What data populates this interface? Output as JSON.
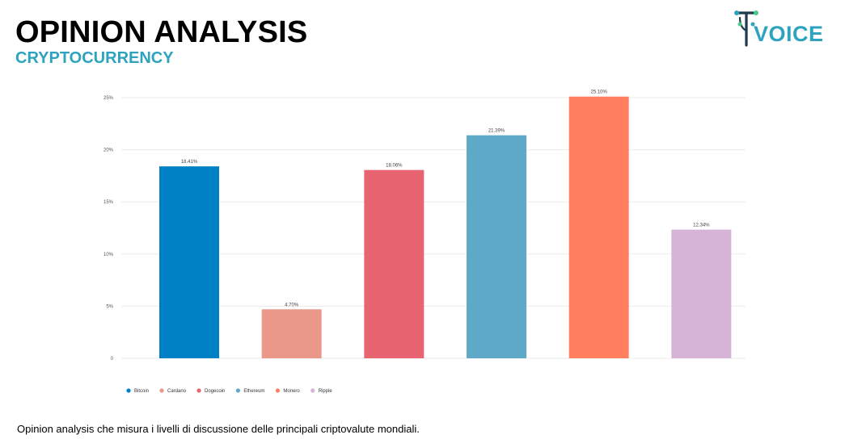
{
  "header": {
    "title": "OPINION ANALYSIS",
    "subtitle": "CRYPTOCURRENCY"
  },
  "logo": {
    "text": "VOICE",
    "icon": "t-voice-logo-icon"
  },
  "colors": {
    "accent": "#2ea3bf",
    "logo_dark": "#1e3a4c",
    "logo_green": "#4cc98a"
  },
  "footer": {
    "caption": "Opinion analysis che misura i livelli di discussione delle principali criptovalute mondiali."
  },
  "chart_data": {
    "type": "bar",
    "categories": [
      "Bitcoin",
      "Cardano",
      "Dogecoin",
      "Ethereum",
      "Monero",
      "Ripple"
    ],
    "values": [
      18.41,
      4.7,
      18.06,
      21.39,
      25.1,
      12.34
    ],
    "data_labels": [
      "18.41%",
      "4.70%",
      "18.06%",
      "21.39%",
      "25.10%",
      "12.34%"
    ],
    "colors": [
      "#0081c6",
      "#e9988a",
      "#e86471",
      "#5ea9c7",
      "#ff7f5e",
      "#d5b4d8"
    ],
    "yticks": [
      0,
      5,
      10,
      15,
      20,
      25
    ],
    "ytick_labels": [
      "0",
      "5%",
      "10%",
      "15%",
      "20%",
      "25%"
    ],
    "ylim": [
      0,
      25
    ],
    "grid": true,
    "legend": [
      "Bitcoin",
      "Cardano",
      "Dogecoin",
      "Ethereum",
      "Monero",
      "Ripple"
    ],
    "legend_position": "bottom-left",
    "title": "",
    "xlabel": "",
    "ylabel": ""
  }
}
